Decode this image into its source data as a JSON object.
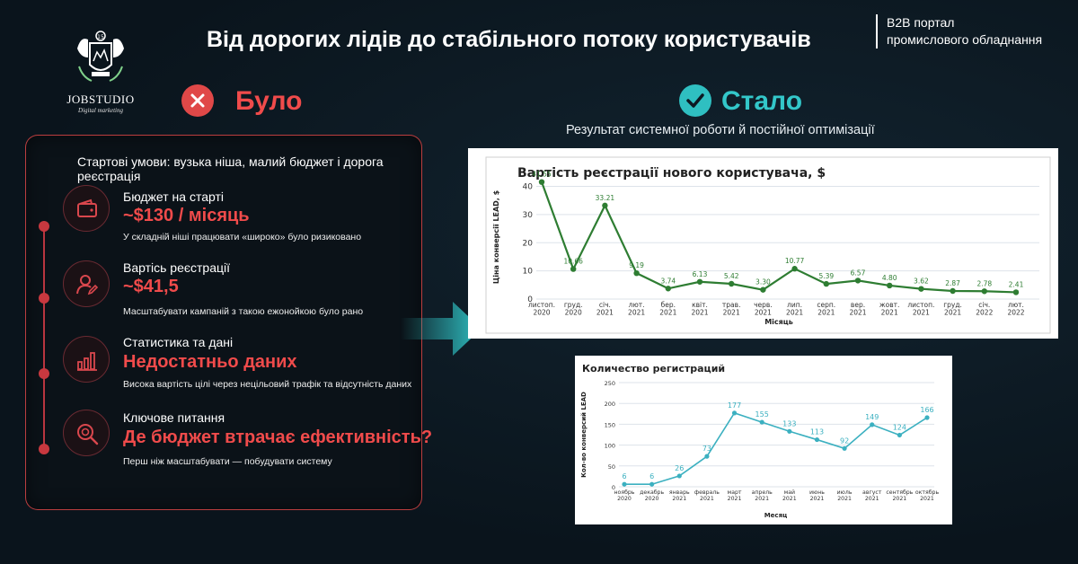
{
  "header": {
    "title": "Від дорогих лідів до стабільного потоку користувачів",
    "portal_line1": "B2B портал",
    "portal_line2": "промислового обладнання"
  },
  "logo": {
    "name": "JOBSTUDIO",
    "subtitle": "Digital marketing",
    "badge": "15"
  },
  "before": {
    "label": "Було",
    "intro": "Стартові умови: вузька ніша, малий бюджет і дорога реєстрація",
    "items": [
      {
        "heading": "Бюджет на старті",
        "value": "~$130 / місяць",
        "desc": "У складній ніші працювати «широко» було ризиковано",
        "icon": "wallet-icon"
      },
      {
        "heading": "Вартісь реєстрації",
        "value": "~$41,5",
        "desc": "Масштабувати кампаній з такою ежонойкою було рано",
        "icon": "user-edit-icon"
      },
      {
        "heading": "Статистика та дані",
        "value": "Недостатньо даних",
        "desc": "Висока вартість цілі через нецільовий трафік та відсутність даних",
        "icon": "bar-chart-icon"
      },
      {
        "heading": "Ключове питання",
        "value": "Де бюджет втрачає ефективність?",
        "desc": "Перш ніж масштабувати — побудувати систему",
        "icon": "search-icon"
      }
    ]
  },
  "after": {
    "label": "Стало",
    "subtitle": "Результат системної роботи й постійної оптимізації"
  },
  "colors": {
    "red": "#f04b4b",
    "teal": "#33c7c9",
    "green": "#2e7d32",
    "line2": "#3bb0c0"
  },
  "chart_data": [
    {
      "type": "line",
      "title": "Вартість реєстрації нового користувача, $",
      "xlabel": "Місяць",
      "ylabel": "Ціна конверсії LEAD, $",
      "categories": [
        [
          "листоп.",
          "2020"
        ],
        [
          "груд.",
          "2020"
        ],
        [
          "січ.",
          "2021"
        ],
        [
          "лют.",
          "2021"
        ],
        [
          "бер.",
          "2021"
        ],
        [
          "квіт.",
          "2021"
        ],
        [
          "трав.",
          "2021"
        ],
        [
          "черв.",
          "2021"
        ],
        [
          "лип.",
          "2021"
        ],
        [
          "серп.",
          "2021"
        ],
        [
          "вер.",
          "2021"
        ],
        [
          "жовт.",
          "2021"
        ],
        [
          "листоп.",
          "2021"
        ],
        [
          "груд.",
          "2021"
        ],
        [
          "січ.",
          "2022"
        ],
        [
          "лют.",
          "2022"
        ]
      ],
      "values": [
        41.55,
        10.66,
        33.21,
        9.19,
        3.74,
        6.13,
        5.42,
        3.3,
        10.77,
        5.39,
        6.57,
        4.8,
        3.62,
        2.87,
        2.78,
        2.41
      ],
      "labels": [
        "41.55",
        "10.66",
        "33.21",
        "9.19",
        "3.74",
        "6.13",
        "5.42",
        "3.30",
        "10.77",
        "5.39",
        "6.57",
        "4.80",
        "3.62",
        "2.87",
        "2.78",
        "2.41"
      ],
      "yticks": [
        0,
        10,
        20,
        30,
        40
      ],
      "ylim": [
        0,
        44
      ],
      "grid": true
    },
    {
      "type": "line",
      "title": "Количество регистраций",
      "xlabel": "Месяц",
      "ylabel": "Кол-во конверсий LEAD",
      "categories": [
        [
          "ноябрь",
          "2020"
        ],
        [
          "декабрь",
          "2020"
        ],
        [
          "январь",
          "2021"
        ],
        [
          "февраль",
          "2021"
        ],
        [
          "март",
          "2021"
        ],
        [
          "апрель",
          "2021"
        ],
        [
          "май",
          "2021"
        ],
        [
          "июнь",
          "2021"
        ],
        [
          "июль",
          "2021"
        ],
        [
          "август",
          "2021"
        ],
        [
          "сентябрь",
          "2021"
        ],
        [
          "октябрь",
          "2021"
        ]
      ],
      "values": [
        6,
        6,
        26,
        73,
        177,
        155,
        133,
        113,
        92,
        149,
        124,
        166
      ],
      "labels": [
        "6",
        "6",
        "26",
        "73",
        "177",
        "155",
        "133",
        "113",
        "92",
        "149",
        "124",
        "166"
      ],
      "yticks": [
        0,
        50,
        100,
        150,
        200,
        250
      ],
      "ylim": [
        0,
        250
      ],
      "grid": true
    }
  ]
}
